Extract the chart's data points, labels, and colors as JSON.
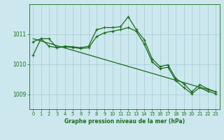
{
  "title": "Graphe pression niveau de la mer (hPa)",
  "background_color": "#cce8ee",
  "grid_color": "#aacfd8",
  "line_color": "#1a6b1a",
  "xlim": [
    -0.5,
    23.5
  ],
  "ylim": [
    1008.5,
    1012.0
  ],
  "yticks": [
    1009,
    1010,
    1011
  ],
  "xticks": [
    0,
    1,
    2,
    3,
    4,
    5,
    6,
    7,
    8,
    9,
    10,
    11,
    12,
    13,
    14,
    15,
    16,
    17,
    18,
    19,
    20,
    21,
    22,
    23
  ],
  "series1_x": [
    0,
    1,
    2,
    3,
    4,
    5,
    6,
    7,
    8,
    9,
    10,
    11,
    12,
    13,
    14,
    15,
    16,
    17,
    18,
    19,
    20,
    21,
    22,
    23
  ],
  "series1_y": [
    1010.3,
    1010.85,
    1010.85,
    1010.55,
    1010.6,
    1010.58,
    1010.55,
    1010.6,
    1011.15,
    1011.22,
    1011.22,
    1011.25,
    1011.58,
    1011.15,
    1010.82,
    1010.18,
    1009.92,
    1009.98,
    1009.52,
    1009.35,
    1009.08,
    1009.32,
    1009.18,
    1009.08
  ],
  "series2_x": [
    0,
    1,
    2,
    3,
    4,
    5,
    6,
    7,
    8,
    9,
    10,
    11,
    12,
    13,
    14,
    15,
    16,
    17,
    18,
    19,
    20,
    21,
    22,
    23
  ],
  "series2_y": [
    1010.75,
    1010.85,
    1010.6,
    1010.55,
    1010.58,
    1010.56,
    1010.52,
    1010.55,
    1010.92,
    1011.05,
    1011.1,
    1011.15,
    1011.22,
    1011.1,
    1010.68,
    1010.08,
    1009.85,
    1009.9,
    1009.45,
    1009.22,
    1009.02,
    1009.22,
    1009.1,
    1009.02
  ],
  "trend_x": [
    0,
    23
  ],
  "trend_y": [
    1010.85,
    1009.08
  ],
  "xlabel_fontsize": 5.5,
  "ytick_fontsize": 5.5,
  "xtick_fontsize": 4.8
}
